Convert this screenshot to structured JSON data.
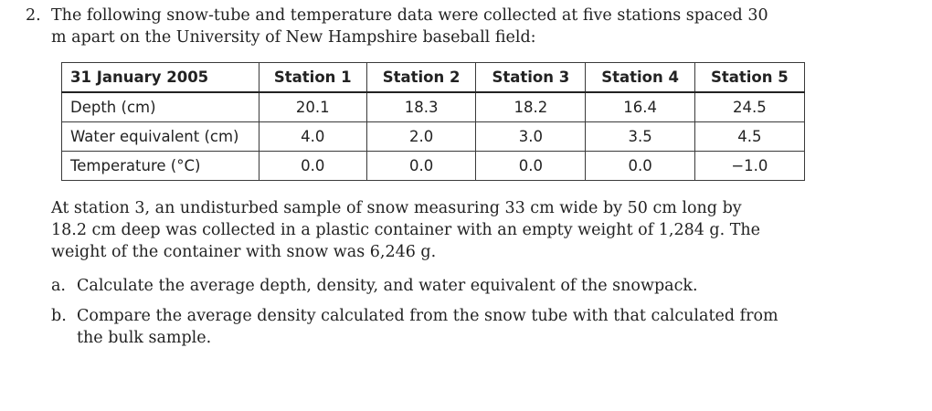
{
  "problem": {
    "number": "2.",
    "intro": "The following snow-tube and temperature data were collected at five stations spaced 30 m apart on the University of New Hampshire baseball field:"
  },
  "table": {
    "header": [
      "31 January 2005",
      "Station 1",
      "Station 2",
      "Station 3",
      "Station 4",
      "Station 5"
    ],
    "rows": [
      {
        "label": "Depth (cm)",
        "values": [
          "20.1",
          "18.3",
          "18.2",
          "16.4",
          "24.5"
        ]
      },
      {
        "label": "Water equivalent (cm)",
        "values": [
          "4.0",
          "2.0",
          "3.0",
          "3.5",
          "4.5"
        ]
      },
      {
        "label": "Temperature (°C)",
        "values": [
          "0.0",
          "0.0",
          "0.0",
          "0.0",
          "−1.0"
        ]
      }
    ]
  },
  "paragraph": "At station 3, an undisturbed sample of snow measuring 33 cm wide by 50 cm long by 18.2 cm deep was collected in a plastic container with an empty weight of 1,284 g. The weight of the container with snow was 6,246 g.",
  "items": [
    {
      "letter": "a.",
      "text": "Calculate the average depth, density, and water equivalent of the snowpack."
    },
    {
      "letter": "b.",
      "text": "Compare the average density calculated from the snow tube with that calculated from the bulk sample."
    }
  ]
}
